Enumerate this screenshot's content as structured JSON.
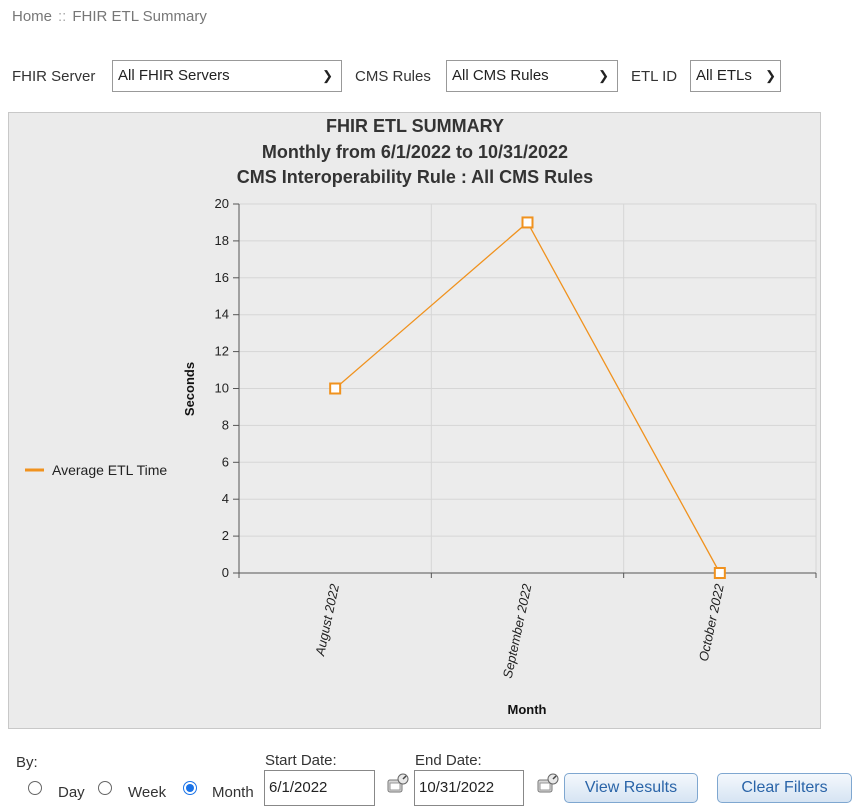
{
  "breadcrumb": {
    "home": "Home",
    "separator": "::",
    "current": "FHIR ETL Summary"
  },
  "filters": {
    "fhir_server_label": "FHIR Server",
    "fhir_server_value": "All FHIR Servers",
    "cms_rules_label": "CMS Rules",
    "cms_rules_value": "All CMS Rules",
    "etl_id_label": "ETL ID",
    "etl_id_value": "All ETLs"
  },
  "chart_data": {
    "type": "line",
    "title": "FHIR ETL SUMMARY",
    "subtitle": "Monthly from 6/1/2022 to 10/31/2022",
    "subtitle2": "CMS Interoperability Rule : All CMS Rules",
    "xlabel": "Month",
    "ylabel": "Seconds",
    "categories": [
      "August 2022",
      "September 2022",
      "October 2022"
    ],
    "series": [
      {
        "name": "Average ETL Time",
        "values": [
          10,
          19,
          0
        ],
        "color": "#f0921e"
      }
    ],
    "ylim": [
      0,
      20
    ],
    "yticks": [
      0,
      2,
      4,
      6,
      8,
      10,
      12,
      14,
      16,
      18,
      20
    ],
    "grid": true,
    "legend_position": "left"
  },
  "controls": {
    "by_label": "By:",
    "radio_day": "Day",
    "radio_week": "Week",
    "radio_month": "Month",
    "selected": "Month",
    "start_date_label": "Start Date:",
    "start_date_value": "6/1/2022",
    "end_date_label": "End Date:",
    "end_date_value": "10/31/2022",
    "view_results": "View Results",
    "clear_filters": "Clear Filters"
  },
  "icons": {
    "calendar_picker": "calendar-picker-icon",
    "dropdown": "chevron-down-icon"
  },
  "colors": {
    "series": "#f0921e",
    "button_text": "#2a64a8",
    "chart_bg": "#ebebeb"
  }
}
